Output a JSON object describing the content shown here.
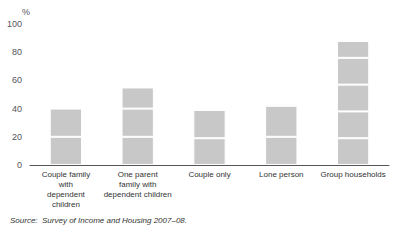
{
  "chart_data": {
    "type": "bar",
    "stacked": true,
    "categories": [
      "Couple family\nwith\ndependent\nchildren",
      "One parent\nfamily with\ndependent children",
      "Couple only",
      "Lone person",
      "Group households"
    ],
    "series": [
      {
        "values": [
          20,
          20,
          19,
          20,
          19
        ]
      },
      {
        "values": [
          20,
          20,
          20,
          22,
          19
        ]
      },
      {
        "values": [
          1,
          15,
          0.5,
          1,
          19
        ]
      },
      {
        "values": [
          null,
          null,
          null,
          null,
          19
        ]
      },
      {
        "values": [
          null,
          null,
          null,
          null,
          12
        ]
      }
    ],
    "color": "#c8c8c8",
    "ylabel": "%",
    "ylim": [
      0,
      100
    ],
    "yticks": [
      0,
      20,
      40,
      60,
      80,
      100
    ],
    "grid": false,
    "annotation": "Source:  Survey of Income and Housing 2007–08."
  }
}
